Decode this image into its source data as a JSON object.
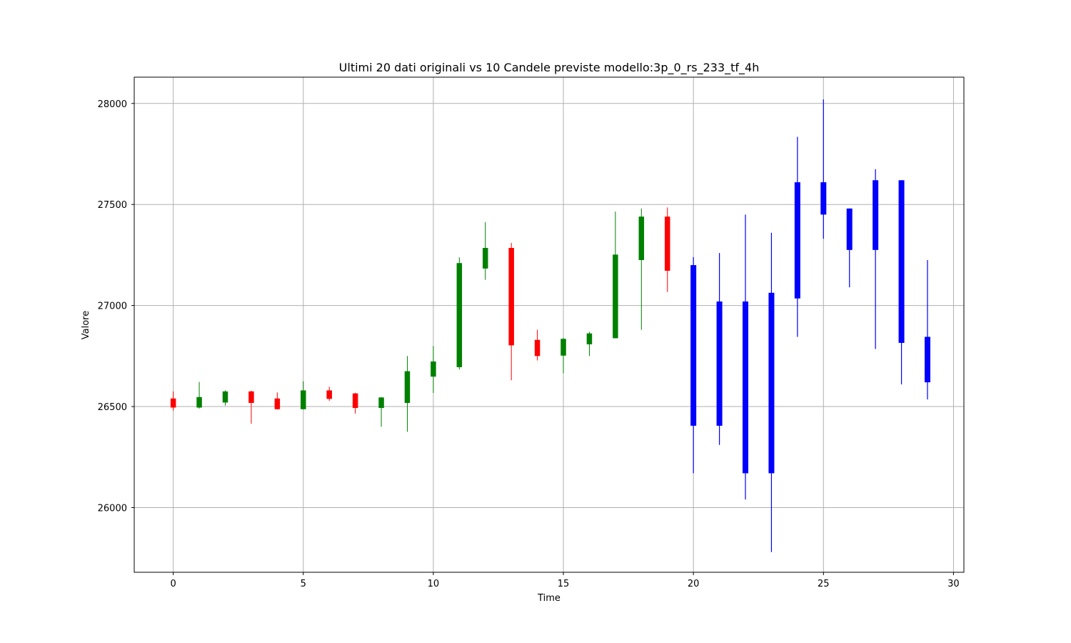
{
  "chart_data": {
    "type": "candlestick",
    "title": "Ultimi 20 dati originali vs 10 Candele previste modello:3p_0_rs_233_tf_4h",
    "xlabel": "Time",
    "ylabel": "Valore",
    "xlim": [
      -1.5,
      30.4
    ],
    "ylim": [
      25680,
      28130
    ],
    "x_ticks": [
      0,
      5,
      10,
      15,
      20,
      25,
      30
    ],
    "y_ticks": [
      26000,
      26500,
      27000,
      27500,
      28000
    ],
    "grid": true,
    "colors": {
      "up": "#008000",
      "down": "#ff0000",
      "forecast": "#0000ff"
    },
    "candles": [
      {
        "x": 0,
        "open": 26540,
        "close": 26495,
        "high": 26575,
        "low": 26480,
        "kind": "down"
      },
      {
        "x": 1,
        "open": 26495,
        "close": 26547,
        "high": 26622,
        "low": 26490,
        "kind": "up"
      },
      {
        "x": 2,
        "open": 26520,
        "close": 26575,
        "high": 26580,
        "low": 26505,
        "kind": "up"
      },
      {
        "x": 3,
        "open": 26575,
        "close": 26518,
        "high": 26578,
        "low": 26415,
        "kind": "down"
      },
      {
        "x": 4,
        "open": 26540,
        "close": 26487,
        "high": 26570,
        "low": 26485,
        "kind": "down"
      },
      {
        "x": 5,
        "open": 26487,
        "close": 26580,
        "high": 26625,
        "low": 26485,
        "kind": "up"
      },
      {
        "x": 6,
        "open": 26580,
        "close": 26538,
        "high": 26598,
        "low": 26528,
        "kind": "down"
      },
      {
        "x": 7,
        "open": 26565,
        "close": 26493,
        "high": 26568,
        "low": 26465,
        "kind": "down"
      },
      {
        "x": 8,
        "open": 26493,
        "close": 26545,
        "high": 26547,
        "low": 26400,
        "kind": "up"
      },
      {
        "x": 9,
        "open": 26518,
        "close": 26675,
        "high": 26750,
        "low": 26375,
        "kind": "up"
      },
      {
        "x": 10,
        "open": 26648,
        "close": 26723,
        "high": 26800,
        "low": 26567,
        "kind": "up"
      },
      {
        "x": 11,
        "open": 26695,
        "close": 27210,
        "high": 27238,
        "low": 26683,
        "kind": "up"
      },
      {
        "x": 12,
        "open": 27183,
        "close": 27285,
        "high": 27413,
        "low": 27127,
        "kind": "up"
      },
      {
        "x": 13,
        "open": 27285,
        "close": 26803,
        "high": 27310,
        "low": 26630,
        "kind": "down"
      },
      {
        "x": 14,
        "open": 26830,
        "close": 26750,
        "high": 26880,
        "low": 26728,
        "kind": "down"
      },
      {
        "x": 15,
        "open": 26752,
        "close": 26835,
        "high": 26840,
        "low": 26665,
        "kind": "up"
      },
      {
        "x": 16,
        "open": 26808,
        "close": 26862,
        "high": 26870,
        "low": 26750,
        "kind": "up"
      },
      {
        "x": 17,
        "open": 26838,
        "close": 27252,
        "high": 27465,
        "low": 26838,
        "kind": "up"
      },
      {
        "x": 18,
        "open": 27225,
        "close": 27440,
        "high": 27480,
        "low": 26880,
        "kind": "up"
      },
      {
        "x": 19,
        "open": 27440,
        "close": 27172,
        "high": 27485,
        "low": 27067,
        "kind": "down"
      },
      {
        "x": 20,
        "open": 27200,
        "close": 26405,
        "high": 27240,
        "low": 26170,
        "kind": "forecast"
      },
      {
        "x": 21,
        "open": 27020,
        "close": 26405,
        "high": 27260,
        "low": 26310,
        "kind": "forecast"
      },
      {
        "x": 22,
        "open": 27020,
        "close": 26170,
        "high": 27450,
        "low": 26040,
        "kind": "forecast"
      },
      {
        "x": 23,
        "open": 27063,
        "close": 26170,
        "high": 27360,
        "low": 25780,
        "kind": "forecast"
      },
      {
        "x": 24,
        "open": 27610,
        "close": 27035,
        "high": 27835,
        "low": 26845,
        "kind": "forecast"
      },
      {
        "x": 25,
        "open": 27610,
        "close": 27450,
        "high": 28020,
        "low": 27330,
        "kind": "forecast"
      },
      {
        "x": 26,
        "open": 27480,
        "close": 27275,
        "high": 27480,
        "low": 27090,
        "kind": "forecast"
      },
      {
        "x": 27,
        "open": 27620,
        "close": 27275,
        "high": 27675,
        "low": 26785,
        "kind": "forecast"
      },
      {
        "x": 28,
        "open": 27620,
        "close": 26815,
        "high": 27620,
        "low": 26610,
        "kind": "forecast"
      },
      {
        "x": 29,
        "open": 26845,
        "close": 26620,
        "high": 27225,
        "low": 26535,
        "kind": "forecast"
      }
    ]
  }
}
